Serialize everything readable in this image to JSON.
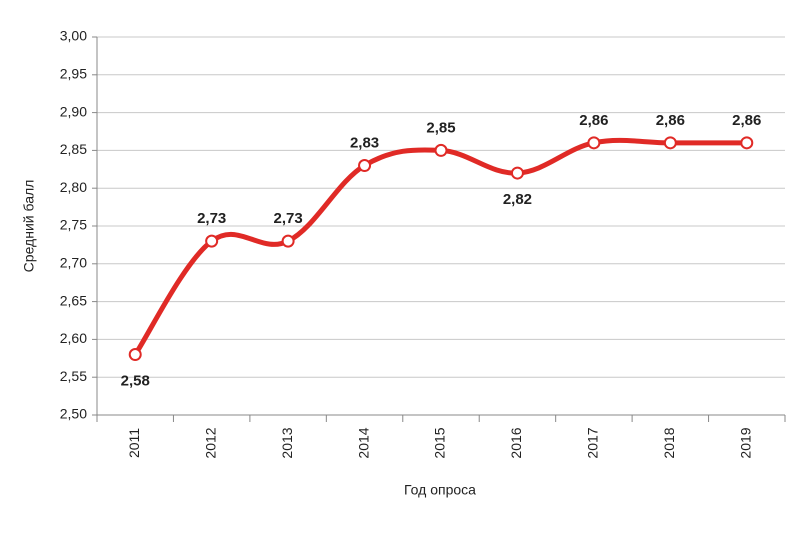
{
  "chart_data": {
    "type": "line",
    "x_label": "Год опроса",
    "y_label": "Средний балл",
    "categories": [
      "2011",
      "2012",
      "2013",
      "2014",
      "2015",
      "2016",
      "2017",
      "2018",
      "2019"
    ],
    "series": [
      {
        "color": "#e02a26",
        "values": [
          2.58,
          2.73,
          2.73,
          2.83,
          2.85,
          2.82,
          2.86,
          2.86,
          2.86
        ],
        "value_labels": [
          "2,58",
          "2,73",
          "2,73",
          "2,83",
          "2,85",
          "2,82",
          "2,86",
          "2,86",
          "2,86"
        ]
      }
    ],
    "ylim": [
      2.5,
      3.0
    ],
    "yticks": [
      {
        "value": 2.5,
        "label": "2,50"
      },
      {
        "value": 2.55,
        "label": "2,55"
      },
      {
        "value": 2.6,
        "label": "2,60"
      },
      {
        "value": 2.65,
        "label": "2,65"
      },
      {
        "value": 2.7,
        "label": "2,70"
      },
      {
        "value": 2.75,
        "label": "2,75"
      },
      {
        "value": 2.8,
        "label": "2,80"
      },
      {
        "value": 2.85,
        "label": "2,85"
      },
      {
        "value": 2.9,
        "label": "2,90"
      },
      {
        "value": 2.95,
        "label": "2,95"
      },
      {
        "value": 3.0,
        "label": "3,00"
      }
    ],
    "grid": true
  }
}
